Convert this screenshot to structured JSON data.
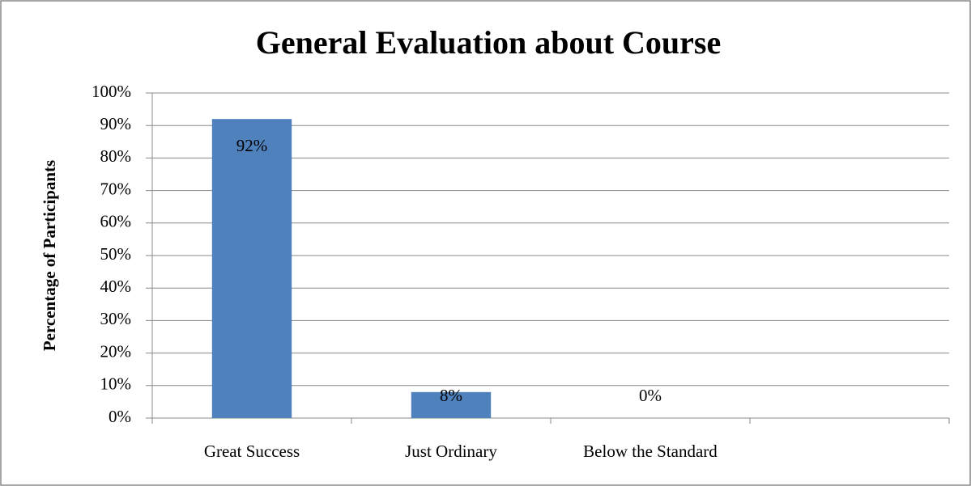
{
  "chart_data": {
    "type": "bar",
    "title": "General Evaluation about Course",
    "y_label": "Percentage of Participants",
    "categories": [
      "Great Success",
      "Just Ordinary",
      "Below the Standard",
      null
    ],
    "values": [
      92,
      8,
      0,
      null
    ],
    "value_labels": [
      "92%",
      "8%",
      "0%",
      null
    ],
    "color": "#4f81bd",
    "ylim": [
      0,
      100
    ],
    "yticks": [
      {
        "value": 0,
        "label": "0%"
      },
      {
        "value": 10,
        "label": "10%"
      },
      {
        "value": 20,
        "label": "20%"
      },
      {
        "value": 30,
        "label": "30%"
      },
      {
        "value": 40,
        "label": "40%"
      },
      {
        "value": 50,
        "label": "50%"
      },
      {
        "value": 60,
        "label": "60%"
      },
      {
        "value": 70,
        "label": "70%"
      },
      {
        "value": 80,
        "label": "80%"
      },
      {
        "value": 90,
        "label": "90%"
      },
      {
        "value": 100,
        "label": "100%"
      }
    ],
    "grid": true
  }
}
